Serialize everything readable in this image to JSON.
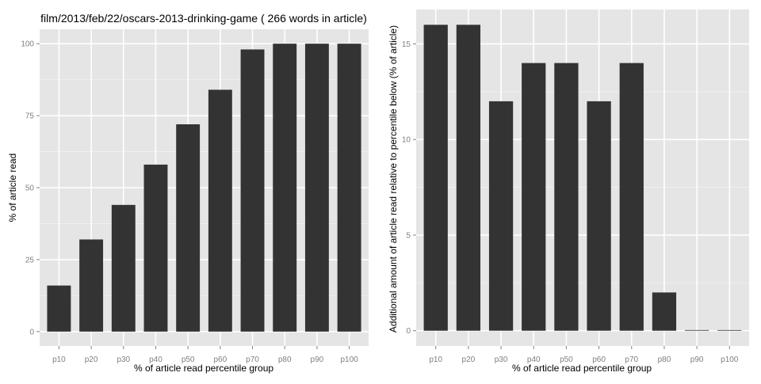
{
  "colors": {
    "panel_background": "#e5e5e5",
    "grid_major": "#ffffff",
    "grid_minor": "#f2f2f2",
    "bar_fill": "#333333",
    "tick_text": "#7f7f7f",
    "axis_tick": "#7f7f7f"
  },
  "chart_data": [
    {
      "type": "bar",
      "title": "film/2013/feb/22/oscars-2013-drinking-game ( 266 words in article)",
      "xlabel": "% of article read percentile group",
      "ylabel": "% of article read",
      "categories": [
        "p10",
        "p20",
        "p30",
        "p40",
        "p50",
        "p60",
        "p70",
        "p80",
        "p90",
        "p100"
      ],
      "values": [
        16,
        32,
        44,
        58,
        72,
        84,
        98,
        100,
        100,
        100
      ],
      "ylim": [
        -5,
        105
      ],
      "yticks": [
        0,
        25,
        50,
        75,
        100
      ],
      "ytick_labels": [
        "0",
        "25",
        "50",
        "75",
        "100"
      ],
      "grid": true,
      "legend": "none"
    },
    {
      "type": "bar",
      "title": "",
      "xlabel": "% of article read percentile group",
      "ylabel": "Additional amount of article read relative to percentile below (% of article)",
      "categories": [
        "p10",
        "p20",
        "p30",
        "p40",
        "p50",
        "p60",
        "p70",
        "p80",
        "p90",
        "p100"
      ],
      "values": [
        16,
        16,
        12,
        14,
        14,
        12,
        14,
        2,
        0,
        0
      ],
      "ylim": [
        -0.8,
        16.8
      ],
      "yticks": [
        0,
        5,
        10,
        15
      ],
      "ytick_labels": [
        "0",
        "5",
        "10",
        "15"
      ],
      "grid": true,
      "legend": "none"
    }
  ]
}
